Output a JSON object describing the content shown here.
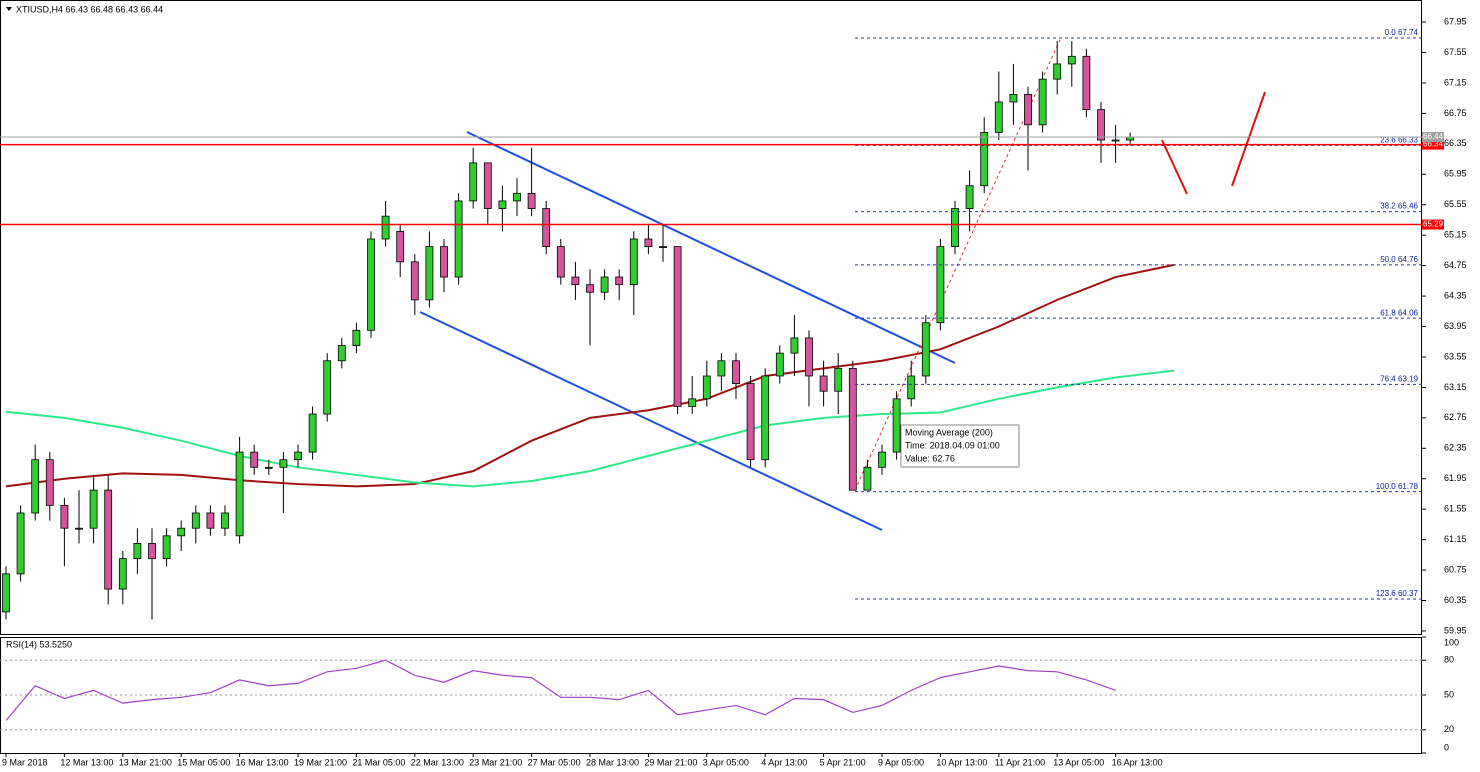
{
  "chart_data": [
    {
      "type": "candlestick",
      "title": "XTIUSD,H4  66.43 66.48 66.43 66.44",
      "up_color": "#32cd32",
      "down_color": "#d4559c",
      "open": [
        60.2,
        60.7,
        61.5,
        62.2,
        61.6,
        61.3,
        61.3,
        61.8,
        60.5,
        60.9,
        61.1,
        60.9,
        61.2,
        61.3,
        61.5,
        61.3,
        61.2,
        62.3,
        62.1,
        62.1,
        62.2,
        62.3,
        62.8,
        63.5,
        63.7,
        63.9,
        65.1,
        65.2,
        64.8,
        64.3,
        65.0,
        64.6,
        65.6,
        66.1,
        65.5,
        65.6,
        65.7,
        65.5,
        65.0,
        64.6,
        64.5,
        64.4,
        64.6,
        64.5,
        65.1,
        65.0,
        65.0,
        62.9,
        63.0,
        63.3,
        63.5,
        63.2,
        62.2,
        63.3,
        63.6,
        63.8,
        63.3,
        63.1,
        63.4,
        61.8,
        62.1,
        62.3,
        63.0,
        63.3,
        64.0,
        65.0,
        65.5,
        65.8,
        66.5,
        66.9,
        67.0,
        66.6,
        67.2,
        67.4,
        67.5,
        66.8,
        66.4,
        66.4
      ],
      "high": [
        60.8,
        61.6,
        62.4,
        62.3,
        61.7,
        61.8,
        62.0,
        62.0,
        61.0,
        61.3,
        61.3,
        61.3,
        61.4,
        61.6,
        61.6,
        61.6,
        62.5,
        62.4,
        62.2,
        62.3,
        62.4,
        62.9,
        63.6,
        63.8,
        64.0,
        65.2,
        65.6,
        65.3,
        64.9,
        65.2,
        65.1,
        65.7,
        66.3,
        66.1,
        65.8,
        65.9,
        66.3,
        65.6,
        65.1,
        64.8,
        64.7,
        64.7,
        64.7,
        65.2,
        65.3,
        65.3,
        65.0,
        63.3,
        63.5,
        63.6,
        63.6,
        63.3,
        63.4,
        63.7,
        64.1,
        63.9,
        63.5,
        63.6,
        63.5,
        62.2,
        62.4,
        63.1,
        63.5,
        64.1,
        65.1,
        65.6,
        66.0,
        66.7,
        67.3,
        67.4,
        67.1,
        67.3,
        67.7,
        67.7,
        67.6,
        66.9,
        66.6,
        66.5
      ],
      "low": [
        60.1,
        60.6,
        61.4,
        61.4,
        60.8,
        61.1,
        61.1,
        60.3,
        60.3,
        60.7,
        60.1,
        60.8,
        61.0,
        61.1,
        61.2,
        61.2,
        61.1,
        62.0,
        62.0,
        61.5,
        62.1,
        62.2,
        62.7,
        63.4,
        63.6,
        63.8,
        65.0,
        64.6,
        64.1,
        64.2,
        64.4,
        64.5,
        65.5,
        65.3,
        65.2,
        65.4,
        65.4,
        64.9,
        64.5,
        64.3,
        63.7,
        64.3,
        64.3,
        64.1,
        64.9,
        64.8,
        62.8,
        62.8,
        62.9,
        63.1,
        63.0,
        62.1,
        62.1,
        63.2,
        63.3,
        62.9,
        62.9,
        62.8,
        61.8,
        61.8,
        62.0,
        62.2,
        62.9,
        63.2,
        63.9,
        64.9,
        65.2,
        65.7,
        66.4,
        66.6,
        66.0,
        66.5,
        67.0,
        67.1,
        66.7,
        66.1,
        66.1,
        66.35
      ],
      "close": [
        60.7,
        61.5,
        62.2,
        61.6,
        61.3,
        61.3,
        61.8,
        60.5,
        60.9,
        61.1,
        60.9,
        61.2,
        61.3,
        61.5,
        61.3,
        61.5,
        62.3,
        62.1,
        62.1,
        62.2,
        62.3,
        62.8,
        63.5,
        63.7,
        63.9,
        65.1,
        65.4,
        64.8,
        64.3,
        65.0,
        64.6,
        65.6,
        66.1,
        65.5,
        65.6,
        65.7,
        65.5,
        65.0,
        64.6,
        64.5,
        64.4,
        64.6,
        64.5,
        65.1,
        65.0,
        65.0,
        62.9,
        63.0,
        63.3,
        63.5,
        63.2,
        62.2,
        63.3,
        63.6,
        63.8,
        63.3,
        63.1,
        63.4,
        61.8,
        62.1,
        62.3,
        63.0,
        63.3,
        64.0,
        65.0,
        65.5,
        65.8,
        66.5,
        66.9,
        67.0,
        66.6,
        67.2,
        67.4,
        67.5,
        66.8,
        66.4,
        66.4,
        66.44
      ],
      "ylim": [
        59.91,
        68.24
      ],
      "yticks": [
        67.95,
        67.55,
        67.15,
        66.75,
        66.35,
        65.95,
        65.55,
        65.15,
        64.75,
        64.35,
        63.95,
        63.55,
        63.15,
        62.75,
        62.35,
        61.95,
        61.55,
        61.15,
        60.75,
        60.35,
        59.95
      ],
      "xticks": [
        {
          "value": 0,
          "label": "9 Mar 2018"
        },
        {
          "value": 4,
          "label": "12 Mar 13:00"
        },
        {
          "value": 8,
          "label": "13 Mar 21:00"
        },
        {
          "value": 12,
          "label": "15 Mar 05:00"
        },
        {
          "value": 16,
          "label": "16 Mar 13:00"
        },
        {
          "value": 20,
          "label": "19 Mar 21:00"
        },
        {
          "value": 24,
          "label": "21 Mar 05:00"
        },
        {
          "value": 28,
          "label": "22 Mar 13:00"
        },
        {
          "value": 32,
          "label": "23 Mar 21:00"
        },
        {
          "value": 36,
          "label": "27 Mar 05:00"
        },
        {
          "value": 40,
          "label": "28 Mar 13:00"
        },
        {
          "value": 44,
          "label": "29 Mar 21:00"
        },
        {
          "value": 48,
          "label": "3 Apr 05:00"
        },
        {
          "value": 52,
          "label": "4 Apr 13:00"
        },
        {
          "value": 56,
          "label": "5 Apr 21:00"
        },
        {
          "value": 60,
          "label": "9 Apr 05:00"
        },
        {
          "value": 64,
          "label": "10 Apr 13:00"
        },
        {
          "value": 68,
          "label": "11 Apr 21:00"
        },
        {
          "value": 72,
          "label": "13 Apr 05:00"
        },
        {
          "value": 76,
          "label": "16 Apr 13:00"
        }
      ],
      "moving_averages": [
        {
          "color": "#a01010",
          "x": [
            0,
            4,
            8,
            12,
            16,
            20,
            24,
            28,
            32,
            36,
            40,
            44,
            48,
            52,
            56,
            60,
            64,
            68,
            72,
            76,
            80
          ],
          "values": [
            61.85,
            61.95,
            62.02,
            62.0,
            61.93,
            61.88,
            61.85,
            61.88,
            62.05,
            62.45,
            62.75,
            62.85,
            63.0,
            63.3,
            63.4,
            63.5,
            63.65,
            63.95,
            64.3,
            64.6,
            64.76
          ]
        },
        {
          "name": "Moving Average (200)",
          "color": "#2ee88a",
          "x": [
            0,
            4,
            8,
            12,
            16,
            20,
            24,
            28,
            32,
            36,
            40,
            44,
            48,
            52,
            56,
            60,
            64,
            68,
            72,
            76,
            80
          ],
          "values": [
            62.83,
            62.75,
            62.62,
            62.45,
            62.25,
            62.1,
            62.0,
            61.9,
            61.85,
            61.92,
            62.05,
            62.25,
            62.45,
            62.65,
            62.75,
            62.8,
            62.82,
            63.0,
            63.15,
            63.28,
            63.37
          ]
        }
      ],
      "hlines": [
        {
          "value": 66.34,
          "color": "#ff0000"
        },
        {
          "value": 65.29,
          "color": "#ff0000"
        },
        {
          "value": 66.44,
          "color": "#a0a0a0"
        }
      ],
      "fib_levels": [
        {
          "value": 67.74,
          "label": "0.0 67.74"
        },
        {
          "value": 66.33,
          "label": "23.6 66.33"
        },
        {
          "value": 65.46,
          "label": "38.2 65.46"
        },
        {
          "value": 64.76,
          "label": "50.0 64.76"
        },
        {
          "value": 64.06,
          "label": "61.8 64.06"
        },
        {
          "value": 63.19,
          "label": "76.4 63.19"
        },
        {
          "value": 61.78,
          "label": "100.0 61.78"
        },
        {
          "value": 60.37,
          "label": "123.6 60.37"
        }
      ],
      "tooltip": {
        "title": "Moving Average (200)",
        "time": "Time: 2018.04.09 01:00",
        "value": "Value: 62.76"
      }
    },
    {
      "type": "line",
      "title": "RSI(14) 53.5250",
      "color": "#a040c8",
      "x": [
        0,
        2,
        4,
        6,
        8,
        10,
        12,
        14,
        16,
        18,
        20,
        22,
        24,
        26,
        28,
        30,
        32,
        34,
        36,
        38,
        40,
        42,
        44,
        46,
        48,
        50,
        52,
        54,
        56,
        58,
        60,
        62,
        64,
        66,
        68,
        70,
        72,
        74,
        76
      ],
      "values": [
        28,
        58,
        47,
        54,
        43,
        46,
        48,
        52,
        63,
        58,
        60,
        70,
        73,
        80,
        67,
        61,
        71,
        67,
        65,
        48,
        48,
        46,
        54,
        33,
        37,
        41,
        33,
        47,
        46,
        35,
        41,
        54,
        65,
        70,
        75,
        71,
        70,
        63,
        54
      ],
      "ylim": [
        0,
        100
      ],
      "yticks": [
        100,
        80,
        50,
        20,
        0
      ]
    }
  ]
}
